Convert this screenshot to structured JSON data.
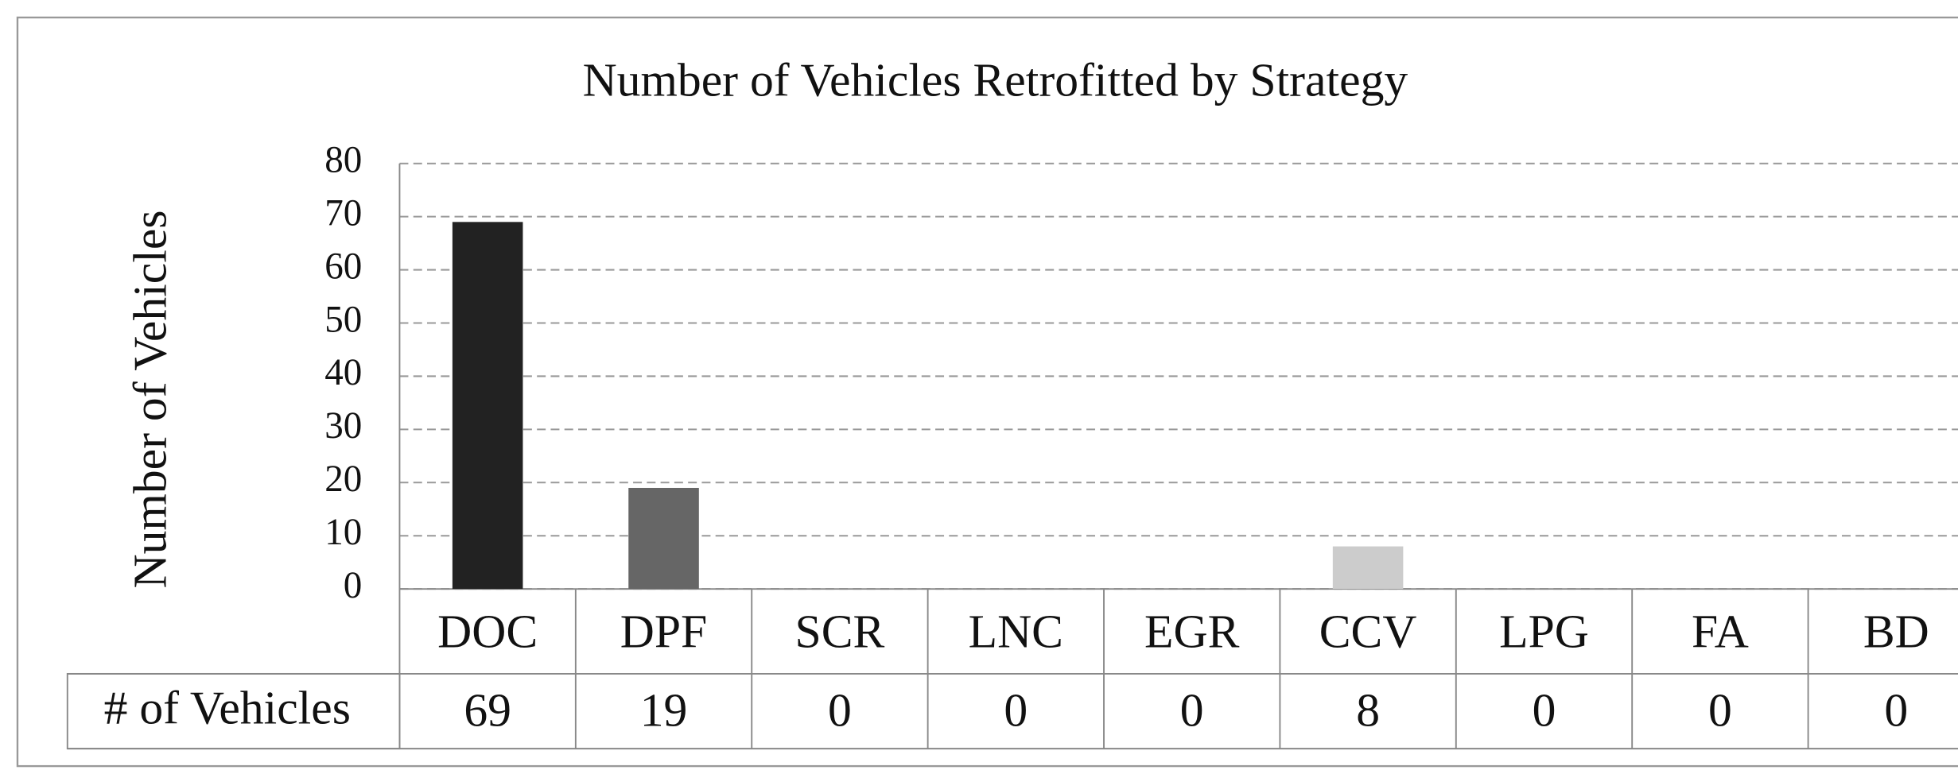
{
  "chart_data": {
    "type": "bar",
    "title": "Number of Vehicles Retrofitted by Strategy",
    "y_label": "Number of Vehicles",
    "table_label": "# of Vehicles",
    "categories": [
      "DOC",
      "DPF",
      "SCR",
      "LNC",
      "EGR",
      "CCV",
      "LPG",
      "FA",
      "BD"
    ],
    "values": [
      69,
      19,
      0,
      0,
      0,
      8,
      0,
      0,
      0
    ],
    "colors": [
      "#222222",
      "#666666",
      "#999999",
      "#999999",
      "#999999",
      "#cccccc",
      "#999999",
      "#999999",
      "#999999"
    ],
    "ylim": [
      0,
      80
    ],
    "yticks": [
      0,
      10,
      20,
      30,
      40,
      50,
      60,
      70,
      80
    ],
    "grid": true
  }
}
